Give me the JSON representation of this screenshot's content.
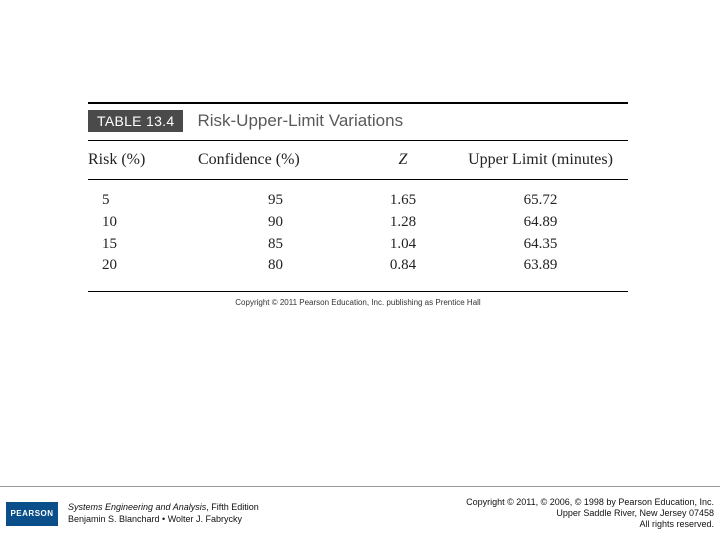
{
  "table": {
    "label": "TABLE 13.4",
    "title": "Risk-Upper-Limit Variations",
    "columns": {
      "risk": "Risk (%)",
      "confidence": "Confidence (%)",
      "z": "Z",
      "upper_limit": "Upper Limit (minutes)"
    },
    "rows": [
      {
        "risk": "5",
        "confidence": "95",
        "z": "1.65",
        "upper_limit": "65.72"
      },
      {
        "risk": "10",
        "confidence": "90",
        "z": "1.28",
        "upper_limit": "64.89"
      },
      {
        "risk": "15",
        "confidence": "85",
        "z": "1.04",
        "upper_limit": "64.35"
      },
      {
        "risk": "20",
        "confidence": "80",
        "z": "0.84",
        "upper_limit": "63.89"
      }
    ],
    "copyright_line": "Copyright © 2011 Pearson Education, Inc. publishing as Prentice Hall"
  },
  "footer": {
    "logo_text": "PEARSON",
    "book_title": "Systems Engineering and Analysis",
    "edition": ", Fifth Edition",
    "authors": "Benjamin S. Blanchard • Wolter J. Fabrycky",
    "right_line1": "Copyright © 2011, © 2006, © 1998 by Pearson Education, Inc.",
    "right_line2": "Upper Saddle River, New Jersey 07458",
    "right_line3": "All rights reserved."
  },
  "colors": {
    "label_bg": "#4a4a4a",
    "title_gray": "#5a5a5a",
    "logo_bg": "#0a4f8a"
  }
}
